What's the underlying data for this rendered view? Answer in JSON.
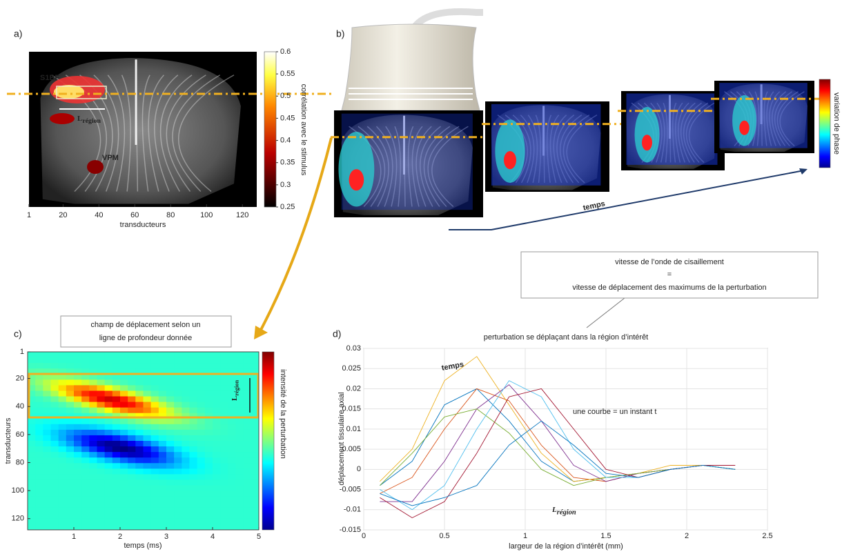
{
  "panel_a": {
    "label": "a)",
    "xticks": [
      1,
      20,
      40,
      60,
      80,
      100,
      120
    ],
    "xlim": [
      1,
      128
    ],
    "xlabel": "transducteurs",
    "colorbar_ticks": [
      0.6,
      0.55,
      0.5,
      0.45,
      0.4,
      0.35,
      0.3,
      0.25
    ],
    "colorbar_lim": [
      0.25,
      0.6
    ],
    "colorbar_label": "corrélation avec le stimulus",
    "region_s1bf": "S1BF",
    "region_vpm": "VPM",
    "width_label": {
      "main": "L",
      "sub": "région"
    }
  },
  "panel_b": {
    "label": "b)",
    "time_label": "temps",
    "colorbar_label": "variation de phase"
  },
  "box": {
    "line1": "vitesse de l’onde de cisaillement",
    "line2": "=",
    "line3": "vitesse de déplacement des maximums de la perturbation"
  },
  "panel_c": {
    "label": "c)",
    "title": {
      "line1": "champ de déplacement selon un",
      "line2": "ligne de profondeur donnée"
    },
    "yticks": [
      1,
      20,
      40,
      60,
      80,
      100,
      120
    ],
    "ylim": [
      1,
      128
    ],
    "xticks": [
      1,
      2,
      3,
      4,
      5
    ],
    "xlim": [
      0,
      5
    ],
    "ylabel": "transducteurs",
    "xlabel": "temps (ms)",
    "colorbar_label": "intensité de la perturbation",
    "width_label": {
      "main": "L",
      "sub": "région"
    }
  },
  "panel_d": {
    "label": "d)",
    "title": "perturbation se déplaçant dans la région d’intérêt",
    "xlim": [
      0,
      2.5
    ],
    "ylim": [
      -0.015,
      0.03
    ],
    "xticks": [
      0,
      0.5,
      1,
      1.5,
      2,
      2.5
    ],
    "yticks": [
      -0.015,
      -0.01,
      -0.005,
      0,
      0.005,
      0.01,
      0.015,
      0.02,
      0.025,
      0.03
    ],
    "ylabel": "déplacement tissulaire axial",
    "xlabel": "largeur de la région d’intérêt (mm)",
    "time_label": "temps",
    "note": "une courbe = un instant t",
    "width_label": {
      "main": "L",
      "sub": "région"
    },
    "x": [
      0.1,
      0.3,
      0.5,
      0.7,
      0.9,
      1.1,
      1.3,
      1.5,
      1.7,
      1.9,
      2.1,
      2.3
    ],
    "series": [
      {
        "color": "#0072bd",
        "values": [
          -0.004,
          0.002,
          0.016,
          0.02,
          0.012,
          0.002,
          -0.003,
          -0.002,
          -0.001,
          0,
          0.001,
          0
        ]
      },
      {
        "color": "#d95319",
        "values": [
          -0.006,
          -0.002,
          0.01,
          0.02,
          0.017,
          0.006,
          -0.002,
          -0.003,
          -0.001,
          0,
          0.001,
          0
        ]
      },
      {
        "color": "#edb120",
        "values": [
          -0.003,
          0.005,
          0.022,
          0.028,
          0.016,
          0.004,
          -0.003,
          -0.002,
          -0.001,
          0.001,
          0.001,
          0
        ]
      },
      {
        "color": "#7e2f8e",
        "values": [
          -0.008,
          -0.008,
          0.002,
          0.015,
          0.021,
          0.012,
          0.001,
          -0.003,
          -0.001,
          0,
          0.001,
          0.001
        ]
      },
      {
        "color": "#77ac30",
        "values": [
          -0.004,
          0.004,
          0.013,
          0.015,
          0.009,
          0,
          -0.004,
          -0.002,
          -0.001,
          0,
          0.001,
          0
        ]
      },
      {
        "color": "#4dbeee",
        "values": [
          -0.005,
          -0.01,
          -0.004,
          0.01,
          0.022,
          0.018,
          0.005,
          -0.002,
          -0.002,
          0,
          0.001,
          0
        ]
      },
      {
        "color": "#a2142f",
        "values": [
          -0.007,
          -0.012,
          -0.008,
          0.004,
          0.018,
          0.02,
          0.01,
          0,
          -0.002,
          0,
          0.001,
          0.001
        ]
      },
      {
        "color": "#0072bd",
        "values": [
          -0.006,
          -0.009,
          -0.007,
          -0.004,
          0.006,
          0.012,
          0.006,
          -0.001,
          -0.002,
          0,
          0.001,
          0
        ]
      }
    ]
  }
}
